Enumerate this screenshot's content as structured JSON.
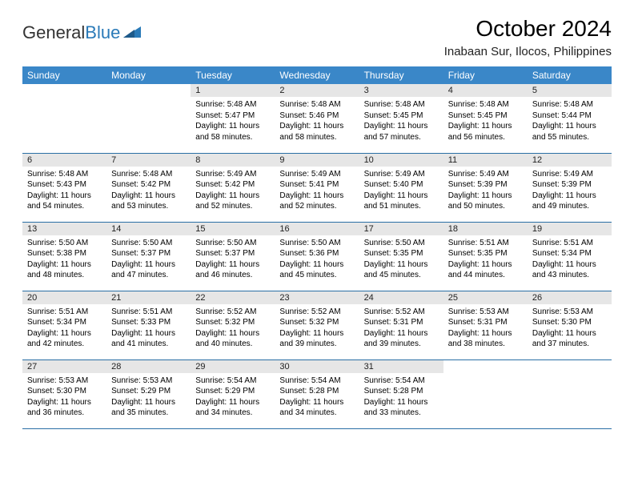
{
  "brand": {
    "part1": "General",
    "part2": "Blue"
  },
  "title": "October 2024",
  "location": "Inabaan Sur, Ilocos, Philippines",
  "colors": {
    "header_bg": "#3a87c8",
    "header_text": "#ffffff",
    "daynum_bg": "#e6e6e6",
    "rule": "#2a6fa5",
    "brand_blue": "#2a7ab8"
  },
  "day_headers": [
    "Sunday",
    "Monday",
    "Tuesday",
    "Wednesday",
    "Thursday",
    "Friday",
    "Saturday"
  ],
  "weeks": [
    [
      {
        "n": "",
        "sr": "",
        "ss": "",
        "dl": ""
      },
      {
        "n": "",
        "sr": "",
        "ss": "",
        "dl": ""
      },
      {
        "n": "1",
        "sr": "Sunrise: 5:48 AM",
        "ss": "Sunset: 5:47 PM",
        "dl": "Daylight: 11 hours and 58 minutes."
      },
      {
        "n": "2",
        "sr": "Sunrise: 5:48 AM",
        "ss": "Sunset: 5:46 PM",
        "dl": "Daylight: 11 hours and 58 minutes."
      },
      {
        "n": "3",
        "sr": "Sunrise: 5:48 AM",
        "ss": "Sunset: 5:45 PM",
        "dl": "Daylight: 11 hours and 57 minutes."
      },
      {
        "n": "4",
        "sr": "Sunrise: 5:48 AM",
        "ss": "Sunset: 5:45 PM",
        "dl": "Daylight: 11 hours and 56 minutes."
      },
      {
        "n": "5",
        "sr": "Sunrise: 5:48 AM",
        "ss": "Sunset: 5:44 PM",
        "dl": "Daylight: 11 hours and 55 minutes."
      }
    ],
    [
      {
        "n": "6",
        "sr": "Sunrise: 5:48 AM",
        "ss": "Sunset: 5:43 PM",
        "dl": "Daylight: 11 hours and 54 minutes."
      },
      {
        "n": "7",
        "sr": "Sunrise: 5:48 AM",
        "ss": "Sunset: 5:42 PM",
        "dl": "Daylight: 11 hours and 53 minutes."
      },
      {
        "n": "8",
        "sr": "Sunrise: 5:49 AM",
        "ss": "Sunset: 5:42 PM",
        "dl": "Daylight: 11 hours and 52 minutes."
      },
      {
        "n": "9",
        "sr": "Sunrise: 5:49 AM",
        "ss": "Sunset: 5:41 PM",
        "dl": "Daylight: 11 hours and 52 minutes."
      },
      {
        "n": "10",
        "sr": "Sunrise: 5:49 AM",
        "ss": "Sunset: 5:40 PM",
        "dl": "Daylight: 11 hours and 51 minutes."
      },
      {
        "n": "11",
        "sr": "Sunrise: 5:49 AM",
        "ss": "Sunset: 5:39 PM",
        "dl": "Daylight: 11 hours and 50 minutes."
      },
      {
        "n": "12",
        "sr": "Sunrise: 5:49 AM",
        "ss": "Sunset: 5:39 PM",
        "dl": "Daylight: 11 hours and 49 minutes."
      }
    ],
    [
      {
        "n": "13",
        "sr": "Sunrise: 5:50 AM",
        "ss": "Sunset: 5:38 PM",
        "dl": "Daylight: 11 hours and 48 minutes."
      },
      {
        "n": "14",
        "sr": "Sunrise: 5:50 AM",
        "ss": "Sunset: 5:37 PM",
        "dl": "Daylight: 11 hours and 47 minutes."
      },
      {
        "n": "15",
        "sr": "Sunrise: 5:50 AM",
        "ss": "Sunset: 5:37 PM",
        "dl": "Daylight: 11 hours and 46 minutes."
      },
      {
        "n": "16",
        "sr": "Sunrise: 5:50 AM",
        "ss": "Sunset: 5:36 PM",
        "dl": "Daylight: 11 hours and 45 minutes."
      },
      {
        "n": "17",
        "sr": "Sunrise: 5:50 AM",
        "ss": "Sunset: 5:35 PM",
        "dl": "Daylight: 11 hours and 45 minutes."
      },
      {
        "n": "18",
        "sr": "Sunrise: 5:51 AM",
        "ss": "Sunset: 5:35 PM",
        "dl": "Daylight: 11 hours and 44 minutes."
      },
      {
        "n": "19",
        "sr": "Sunrise: 5:51 AM",
        "ss": "Sunset: 5:34 PM",
        "dl": "Daylight: 11 hours and 43 minutes."
      }
    ],
    [
      {
        "n": "20",
        "sr": "Sunrise: 5:51 AM",
        "ss": "Sunset: 5:34 PM",
        "dl": "Daylight: 11 hours and 42 minutes."
      },
      {
        "n": "21",
        "sr": "Sunrise: 5:51 AM",
        "ss": "Sunset: 5:33 PM",
        "dl": "Daylight: 11 hours and 41 minutes."
      },
      {
        "n": "22",
        "sr": "Sunrise: 5:52 AM",
        "ss": "Sunset: 5:32 PM",
        "dl": "Daylight: 11 hours and 40 minutes."
      },
      {
        "n": "23",
        "sr": "Sunrise: 5:52 AM",
        "ss": "Sunset: 5:32 PM",
        "dl": "Daylight: 11 hours and 39 minutes."
      },
      {
        "n": "24",
        "sr": "Sunrise: 5:52 AM",
        "ss": "Sunset: 5:31 PM",
        "dl": "Daylight: 11 hours and 39 minutes."
      },
      {
        "n": "25",
        "sr": "Sunrise: 5:53 AM",
        "ss": "Sunset: 5:31 PM",
        "dl": "Daylight: 11 hours and 38 minutes."
      },
      {
        "n": "26",
        "sr": "Sunrise: 5:53 AM",
        "ss": "Sunset: 5:30 PM",
        "dl": "Daylight: 11 hours and 37 minutes."
      }
    ],
    [
      {
        "n": "27",
        "sr": "Sunrise: 5:53 AM",
        "ss": "Sunset: 5:30 PM",
        "dl": "Daylight: 11 hours and 36 minutes."
      },
      {
        "n": "28",
        "sr": "Sunrise: 5:53 AM",
        "ss": "Sunset: 5:29 PM",
        "dl": "Daylight: 11 hours and 35 minutes."
      },
      {
        "n": "29",
        "sr": "Sunrise: 5:54 AM",
        "ss": "Sunset: 5:29 PM",
        "dl": "Daylight: 11 hours and 34 minutes."
      },
      {
        "n": "30",
        "sr": "Sunrise: 5:54 AM",
        "ss": "Sunset: 5:28 PM",
        "dl": "Daylight: 11 hours and 34 minutes."
      },
      {
        "n": "31",
        "sr": "Sunrise: 5:54 AM",
        "ss": "Sunset: 5:28 PM",
        "dl": "Daylight: 11 hours and 33 minutes."
      },
      {
        "n": "",
        "sr": "",
        "ss": "",
        "dl": ""
      },
      {
        "n": "",
        "sr": "",
        "ss": "",
        "dl": ""
      }
    ]
  ]
}
